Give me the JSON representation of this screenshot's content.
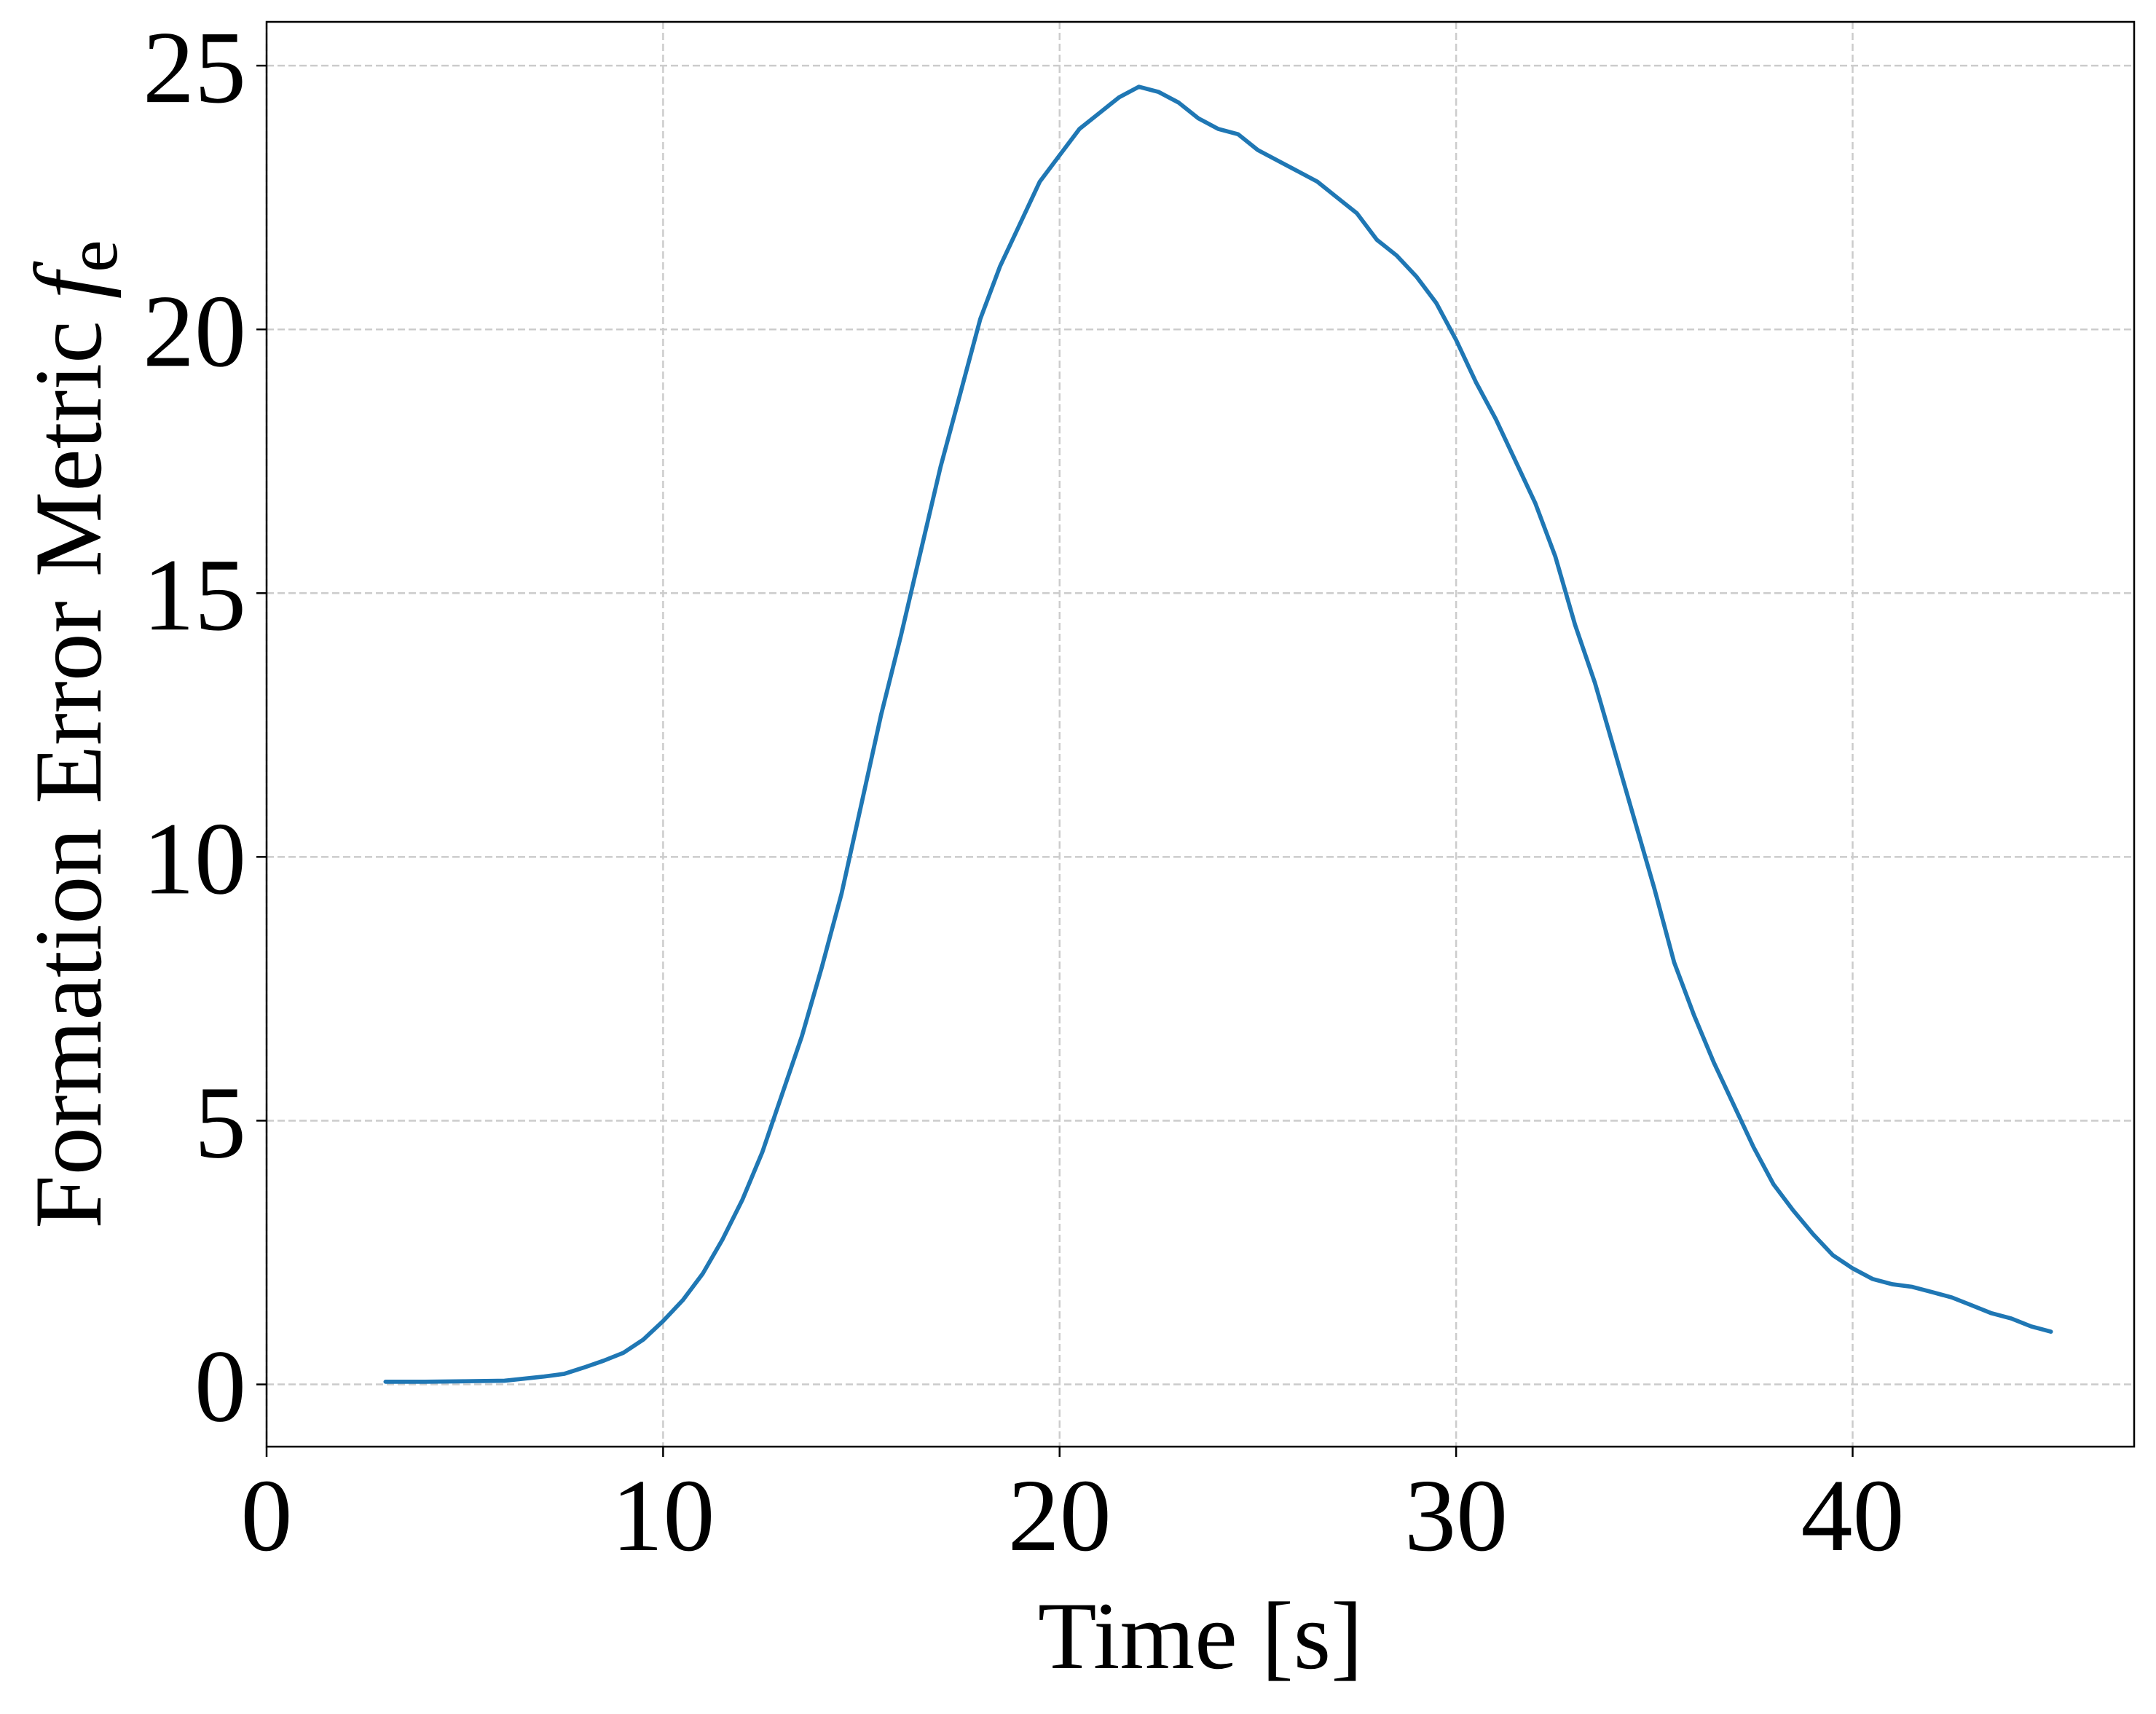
{
  "chart_data": {
    "type": "line",
    "xlabel": "Time [s]",
    "ylabel": "Formation Error Metric",
    "ylabel_symbol": "f",
    "ylabel_subscript": "e",
    "x": [
      3,
      4,
      5,
      6,
      7,
      7.5,
      8,
      8.5,
      9,
      9.5,
      10,
      10.5,
      11,
      11.5,
      12,
      12.5,
      13,
      13.5,
      14,
      14.5,
      15,
      15.5,
      16,
      16.5,
      17,
      17.5,
      18,
      18.5,
      19,
      19.5,
      20,
      20.5,
      21,
      21.5,
      22,
      22.5,
      23,
      23.5,
      24,
      24.5,
      25,
      25.5,
      26,
      26.5,
      27,
      27.5,
      28,
      28.5,
      29,
      29.5,
      30,
      30.5,
      31,
      31.5,
      32,
      32.5,
      33,
      33.5,
      34,
      34.5,
      35,
      35.5,
      36,
      36.5,
      37,
      37.5,
      38,
      38.5,
      39,
      39.5,
      40,
      40.5,
      41,
      41.5,
      42,
      42.5,
      43,
      43.5,
      44,
      44.5,
      45
    ],
    "series": [
      {
        "color": "#1f77b4",
        "values": [
          0.05,
          0.05,
          0.06,
          0.07,
          0.15,
          0.2,
          0.32,
          0.45,
          0.6,
          0.85,
          1.2,
          1.6,
          2.1,
          2.75,
          3.5,
          4.4,
          5.5,
          6.6,
          7.9,
          9.3,
          11.0,
          12.7,
          14.2,
          15.8,
          17.4,
          18.8,
          20.2,
          21.2,
          22.0,
          22.8,
          23.3,
          23.8,
          24.1,
          24.4,
          24.6,
          24.5,
          24.3,
          24.0,
          23.8,
          23.7,
          23.4,
          23.2,
          23.0,
          22.8,
          22.5,
          22.2,
          21.7,
          21.4,
          21.0,
          20.5,
          19.8,
          19.0,
          18.3,
          17.5,
          16.7,
          15.7,
          14.4,
          13.3,
          12.0,
          10.7,
          9.4,
          8.0,
          7.0,
          6.1,
          5.3,
          4.5,
          3.8,
          3.3,
          2.85,
          2.45,
          2.2,
          2.0,
          1.9,
          1.85,
          1.75,
          1.65,
          1.5,
          1.35,
          1.25,
          1.1,
          1.0
        ]
      }
    ],
    "xlim": [
      0,
      47.1
    ],
    "xticks": [
      0,
      10,
      20,
      30,
      40
    ],
    "ylim": [
      -1.18,
      25.83
    ],
    "yticks": [
      0,
      5,
      10,
      15,
      20,
      25
    ],
    "grid": true
  }
}
